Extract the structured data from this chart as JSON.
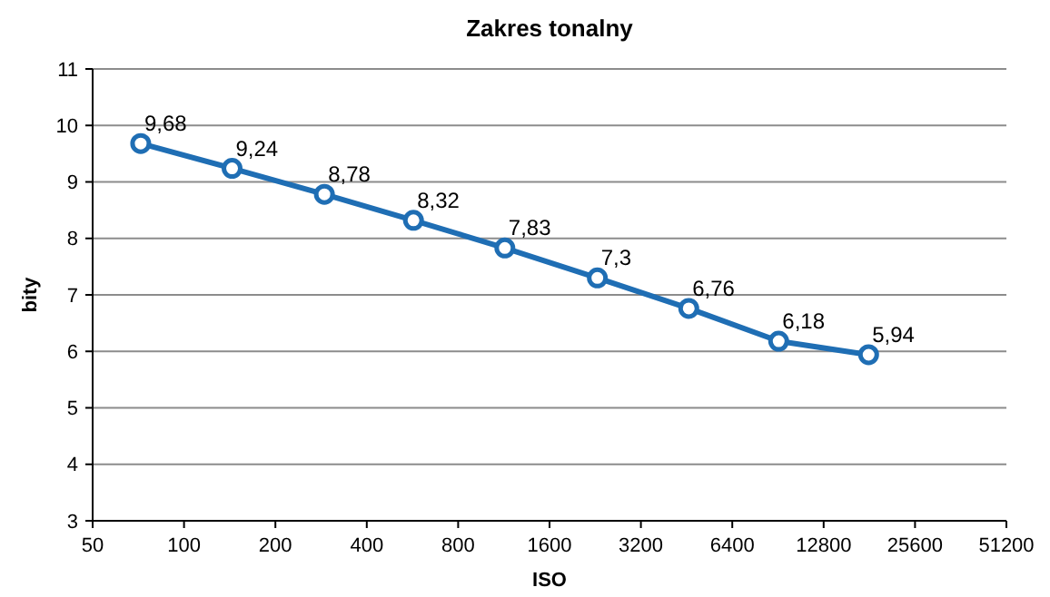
{
  "chart_data": {
    "type": "line",
    "title": "Zakres tonalny",
    "xlabel": "ISO",
    "ylabel": "bity",
    "x": [
      72,
      144,
      290,
      570,
      1140,
      2300,
      4600,
      9100,
      18000
    ],
    "series": [
      {
        "color": "#1f6eb4",
        "values": [
          9.68,
          9.24,
          8.78,
          8.32,
          7.83,
          7.3,
          6.76,
          6.18,
          5.94
        ],
        "value_labels": [
          "9,68",
          "9,24",
          "8,78",
          "8,32",
          "7,83",
          "7,3",
          "6,76",
          "6,18",
          "5,94"
        ]
      }
    ],
    "log": "x",
    "xlim": [
      50,
      51200
    ],
    "xticks": [
      50,
      100,
      200,
      400,
      800,
      1600,
      3200,
      6400,
      12800,
      25600,
      51200
    ],
    "ylim": [
      3,
      11
    ],
    "yticks": [
      3,
      4,
      5,
      6,
      7,
      8,
      9,
      10,
      11
    ],
    "grid": "y",
    "marker": "circle",
    "line_style": "solid"
  }
}
